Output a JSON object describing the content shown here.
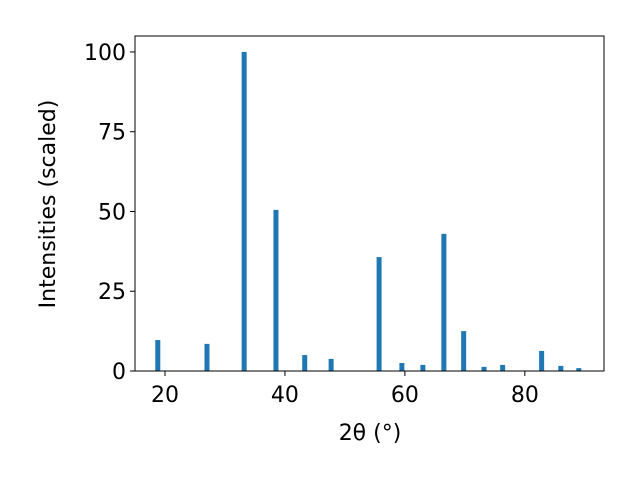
{
  "chart_data": {
    "type": "bar",
    "xlabel": "2θ (°)",
    "ylabel": "Intensities (scaled)",
    "color": "#1f77b4",
    "x": [
      18.8,
      27.0,
      33.2,
      38.5,
      43.3,
      47.7,
      55.7,
      59.5,
      63.0,
      66.5,
      69.8,
      73.2,
      76.3,
      82.8,
      86.0,
      89.0
    ],
    "values": [
      9.7,
      8.5,
      100,
      50.5,
      5.0,
      3.8,
      35.7,
      2.5,
      1.9,
      43,
      12.5,
      1.3,
      1.9,
      6.3,
      1.6,
      0.9
    ],
    "xlim": [
      15,
      93.2
    ],
    "ylim": [
      0,
      105
    ],
    "xticks": [
      20,
      40,
      60,
      80
    ],
    "yticks": [
      0,
      25,
      50,
      75,
      100
    ]
  }
}
